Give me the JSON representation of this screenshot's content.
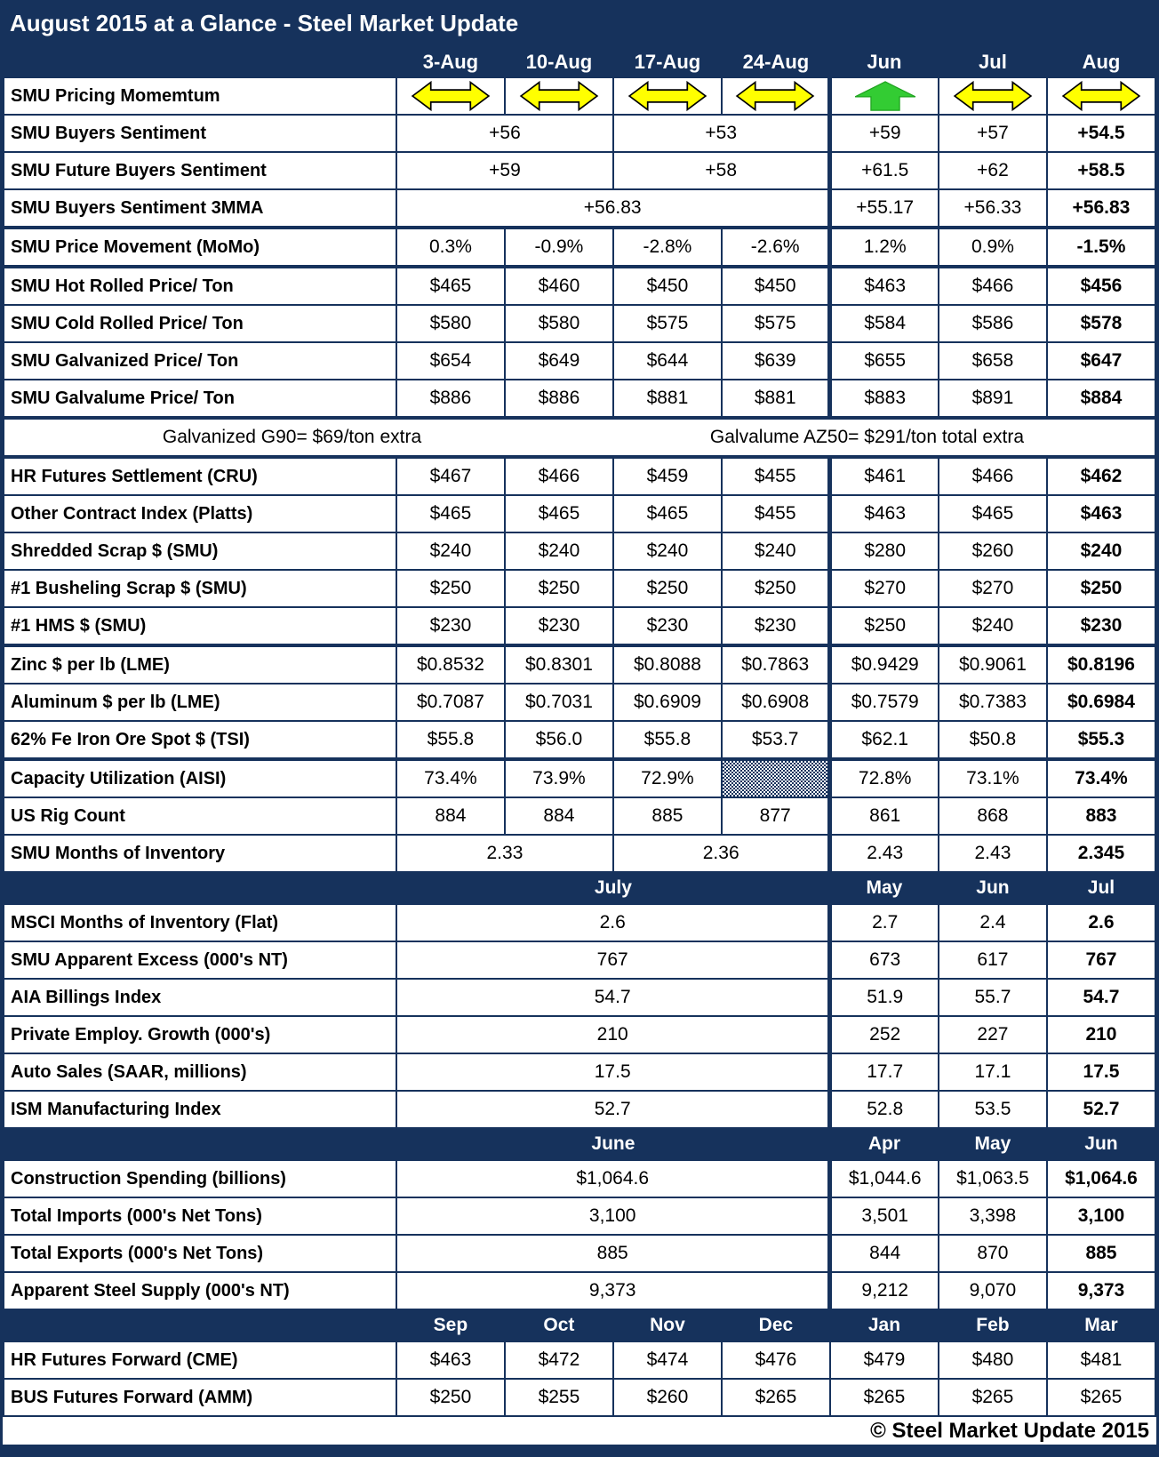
{
  "title": "August 2015 at a Glance - Steel Market Update",
  "copyright": "© Steel Market Update 2015",
  "colors": {
    "navy": "#16325C",
    "arrow_yellow": "#FFFF00",
    "arrow_green": "#33CC33",
    "text": "#000000",
    "header_text": "#FFFFFF"
  },
  "icons": {
    "double-arrow": "left-right-double-arrow-icon",
    "up-arrow": "up-arrow-icon"
  },
  "table": {
    "sections": [
      {
        "band": [
          {
            "t": "3-Aug"
          },
          {
            "t": "10-Aug"
          },
          {
            "t": "17-Aug"
          },
          {
            "t": "24-Aug"
          },
          {
            "t": "Jun"
          },
          {
            "t": "Jul"
          },
          {
            "t": "Aug"
          }
        ],
        "rows": [
          {
            "label": "SMU Pricing Momemtum",
            "cells": [
              {
                "icon": "double-arrow"
              },
              {
                "icon": "double-arrow"
              },
              {
                "icon": "double-arrow"
              },
              {
                "icon": "double-arrow"
              },
              {
                "icon": "up-arrow"
              },
              {
                "icon": "double-arrow"
              },
              {
                "icon": "double-arrow"
              }
            ]
          },
          {
            "label": "SMU Buyers Sentiment",
            "cells": [
              {
                "t": "+56",
                "cs": 2
              },
              {
                "t": "+53",
                "cs": 2
              },
              {
                "t": "+59"
              },
              {
                "t": "+57"
              },
              {
                "t": "+54.5",
                "b": true
              }
            ]
          },
          {
            "label": "SMU Future Buyers Sentiment",
            "cells": [
              {
                "t": "+59",
                "cs": 2
              },
              {
                "t": "+58",
                "cs": 2
              },
              {
                "t": "+61.5"
              },
              {
                "t": "+62"
              },
              {
                "t": "+58.5",
                "b": true
              }
            ]
          },
          {
            "label": "SMU Buyers Sentiment 3MMA",
            "cells": [
              {
                "t": "+56.83",
                "cs": 4
              },
              {
                "t": "+55.17"
              },
              {
                "t": "+56.33"
              },
              {
                "t": "+56.83",
                "b": true
              }
            ]
          },
          {
            "label": "SMU Price Movement (MoMo)",
            "thick": true,
            "cells": [
              {
                "t": "0.3%"
              },
              {
                "t": "-0.9%"
              },
              {
                "t": "-2.8%"
              },
              {
                "t": "-2.6%"
              },
              {
                "t": "1.2%"
              },
              {
                "t": "0.9%"
              },
              {
                "t": "-1.5%",
                "b": true
              }
            ]
          },
          {
            "label": "SMU Hot Rolled Price/ Ton",
            "thick": true,
            "cells": [
              {
                "t": "$465"
              },
              {
                "t": "$460"
              },
              {
                "t": "$450"
              },
              {
                "t": "$450"
              },
              {
                "t": "$463"
              },
              {
                "t": "$466"
              },
              {
                "t": "$456",
                "b": true
              }
            ]
          },
          {
            "label": "SMU Cold Rolled Price/ Ton",
            "cells": [
              {
                "t": "$580"
              },
              {
                "t": "$580"
              },
              {
                "t": "$575"
              },
              {
                "t": "$575"
              },
              {
                "t": "$584"
              },
              {
                "t": "$586"
              },
              {
                "t": "$578",
                "b": true
              }
            ]
          },
          {
            "label": "SMU Galvanized Price/ Ton",
            "cells": [
              {
                "t": "$654"
              },
              {
                "t": "$649"
              },
              {
                "t": "$644"
              },
              {
                "t": "$639"
              },
              {
                "t": "$655"
              },
              {
                "t": "$658"
              },
              {
                "t": "$647",
                "b": true
              }
            ]
          },
          {
            "label": "SMU Galvalume Price/ Ton",
            "cells": [
              {
                "t": "$886"
              },
              {
                "t": "$886"
              },
              {
                "t": "$881"
              },
              {
                "t": "$881"
              },
              {
                "t": "$883"
              },
              {
                "t": "$891"
              },
              {
                "t": "$884",
                "b": true
              }
            ]
          },
          {
            "note": [
              "Galvanized G90= $69/ton extra",
              "Galvalume AZ50= $291/ton total extra"
            ],
            "thick": true
          },
          {
            "label": "HR Futures Settlement (CRU)",
            "thick": true,
            "cells": [
              {
                "t": "$467"
              },
              {
                "t": "$466"
              },
              {
                "t": "$459"
              },
              {
                "t": "$455"
              },
              {
                "t": "$461"
              },
              {
                "t": "$466"
              },
              {
                "t": "$462",
                "b": true
              }
            ]
          },
          {
            "label": "Other Contract Index (Platts)",
            "cells": [
              {
                "t": "$465"
              },
              {
                "t": "$465"
              },
              {
                "t": "$465"
              },
              {
                "t": "$455"
              },
              {
                "t": "$463"
              },
              {
                "t": "$465"
              },
              {
                "t": "$463",
                "b": true
              }
            ]
          },
          {
            "label": "Shredded Scrap $ (SMU)",
            "cells": [
              {
                "t": "$240"
              },
              {
                "t": "$240"
              },
              {
                "t": "$240"
              },
              {
                "t": "$240"
              },
              {
                "t": "$280"
              },
              {
                "t": "$260"
              },
              {
                "t": "$240",
                "b": true
              }
            ]
          },
          {
            "label": "#1 Busheling Scrap $ (SMU)",
            "cells": [
              {
                "t": "$250"
              },
              {
                "t": "$250"
              },
              {
                "t": "$250"
              },
              {
                "t": "$250"
              },
              {
                "t": "$270"
              },
              {
                "t": "$270"
              },
              {
                "t": "$250",
                "b": true
              }
            ]
          },
          {
            "label": "#1 HMS $ (SMU)",
            "cells": [
              {
                "t": "$230"
              },
              {
                "t": "$230"
              },
              {
                "t": "$230"
              },
              {
                "t": "$230"
              },
              {
                "t": "$250"
              },
              {
                "t": "$240"
              },
              {
                "t": "$230",
                "b": true
              }
            ]
          },
          {
            "label": "Zinc $ per lb (LME)",
            "thick": true,
            "cells": [
              {
                "t": "$0.8532"
              },
              {
                "t": "$0.8301"
              },
              {
                "t": "$0.8088"
              },
              {
                "t": "$0.7863"
              },
              {
                "t": "$0.9429"
              },
              {
                "t": "$0.9061"
              },
              {
                "t": "$0.8196",
                "b": true
              }
            ]
          },
          {
            "label": "Aluminum $ per lb (LME)",
            "cells": [
              {
                "t": "$0.7087"
              },
              {
                "t": "$0.7031"
              },
              {
                "t": "$0.6909"
              },
              {
                "t": "$0.6908"
              },
              {
                "t": "$0.7579"
              },
              {
                "t": "$0.7383"
              },
              {
                "t": "$0.6984",
                "b": true
              }
            ]
          },
          {
            "label": "62% Fe Iron Ore Spot $ (TSI)",
            "cells": [
              {
                "t": "$55.8"
              },
              {
                "t": "$56.0"
              },
              {
                "t": "$55.8"
              },
              {
                "t": "$53.7"
              },
              {
                "t": "$62.1"
              },
              {
                "t": "$50.8"
              },
              {
                "t": "$55.3",
                "b": true
              }
            ]
          },
          {
            "label": "Capacity Utilization (AISI)",
            "thick": true,
            "cells": [
              {
                "t": "73.4%"
              },
              {
                "t": "73.9%"
              },
              {
                "t": "72.9%"
              },
              {
                "pat": true
              },
              {
                "t": "72.8%"
              },
              {
                "t": "73.1%"
              },
              {
                "t": "73.4%",
                "b": true
              }
            ]
          },
          {
            "label": "US Rig Count",
            "cells": [
              {
                "t": "884"
              },
              {
                "t": "884"
              },
              {
                "t": "885"
              },
              {
                "t": "877"
              },
              {
                "t": "861"
              },
              {
                "t": "868"
              },
              {
                "t": "883",
                "b": true
              }
            ]
          },
          {
            "label": "SMU Months of Inventory",
            "cells": [
              {
                "t": "2.33",
                "cs": 2
              },
              {
                "t": "2.36",
                "cs": 2
              },
              {
                "t": "2.43"
              },
              {
                "t": "2.43"
              },
              {
                "t": "2.345",
                "b": true
              }
            ]
          }
        ]
      },
      {
        "band": [
          {
            "t": "July",
            "cs": 4
          },
          {
            "t": "May"
          },
          {
            "t": "Jun"
          },
          {
            "t": "Jul"
          }
        ],
        "rows": [
          {
            "label": "MSCI Months of Inventory (Flat)",
            "cells": [
              {
                "t": "2.6",
                "cs": 4
              },
              {
                "t": "2.7"
              },
              {
                "t": "2.4"
              },
              {
                "t": "2.6",
                "b": true
              }
            ]
          },
          {
            "label": "SMU Apparent Excess (000's NT)",
            "cells": [
              {
                "t": "767",
                "cs": 4
              },
              {
                "t": "673"
              },
              {
                "t": "617"
              },
              {
                "t": "767",
                "b": true
              }
            ]
          },
          {
            "label": "AIA Billings Index",
            "cells": [
              {
                "t": "54.7",
                "cs": 4
              },
              {
                "t": "51.9"
              },
              {
                "t": "55.7"
              },
              {
                "t": "54.7",
                "b": true
              }
            ]
          },
          {
            "label": "Private Employ. Growth (000's)",
            "cells": [
              {
                "t": "210",
                "cs": 4
              },
              {
                "t": "252"
              },
              {
                "t": "227"
              },
              {
                "t": "210",
                "b": true
              }
            ]
          },
          {
            "label": "Auto Sales (SAAR, millions)",
            "cells": [
              {
                "t": "17.5",
                "cs": 4
              },
              {
                "t": "17.7"
              },
              {
                "t": "17.1"
              },
              {
                "t": "17.5",
                "b": true
              }
            ]
          },
          {
            "label": "ISM Manufacturing Index",
            "cells": [
              {
                "t": "52.7",
                "cs": 4
              },
              {
                "t": "52.8"
              },
              {
                "t": "53.5"
              },
              {
                "t": "52.7",
                "b": true
              }
            ]
          }
        ]
      },
      {
        "band": [
          {
            "t": "June",
            "cs": 4
          },
          {
            "t": "Apr"
          },
          {
            "t": "May"
          },
          {
            "t": "Jun"
          }
        ],
        "rows": [
          {
            "label": "Construction Spending (billions)",
            "cells": [
              {
                "t": "$1,064.6",
                "cs": 4
              },
              {
                "t": "$1,044.6"
              },
              {
                "t": "$1,063.5"
              },
              {
                "t": "$1,064.6",
                "b": true
              }
            ]
          },
          {
            "label": "Total Imports (000's Net Tons)",
            "cells": [
              {
                "t": "3,100",
                "cs": 4
              },
              {
                "t": "3,501"
              },
              {
                "t": "3,398"
              },
              {
                "t": "3,100",
                "b": true
              }
            ]
          },
          {
            "label": "Total Exports (000's Net Tons)",
            "cells": [
              {
                "t": "885",
                "cs": 4
              },
              {
                "t": "844"
              },
              {
                "t": "870"
              },
              {
                "t": "885",
                "b": true
              }
            ]
          },
          {
            "label": "Apparent Steel Supply (000's NT)",
            "cells": [
              {
                "t": "9,373",
                "cs": 4
              },
              {
                "t": "9,212"
              },
              {
                "t": "9,070"
              },
              {
                "t": "9,373",
                "b": true
              }
            ]
          }
        ]
      },
      {
        "band": [
          {
            "t": "Sep"
          },
          {
            "t": "Oct"
          },
          {
            "t": "Nov"
          },
          {
            "t": "Dec"
          },
          {
            "t": "Jan"
          },
          {
            "t": "Feb"
          },
          {
            "t": "Mar"
          }
        ],
        "rows": [
          {
            "label": "HR Futures Forward (CME)",
            "cells": [
              {
                "t": "$463"
              },
              {
                "t": "$472"
              },
              {
                "t": "$474"
              },
              {
                "t": "$476"
              },
              {
                "t": "$479"
              },
              {
                "t": "$480"
              },
              {
                "t": "$481"
              }
            ]
          },
          {
            "label": "BUS Futures Forward (AMM)",
            "cells": [
              {
                "t": "$250"
              },
              {
                "t": "$255"
              },
              {
                "t": "$260"
              },
              {
                "t": "$265"
              },
              {
                "t": "$265"
              },
              {
                "t": "$265"
              },
              {
                "t": "$265"
              }
            ]
          }
        ]
      }
    ]
  }
}
